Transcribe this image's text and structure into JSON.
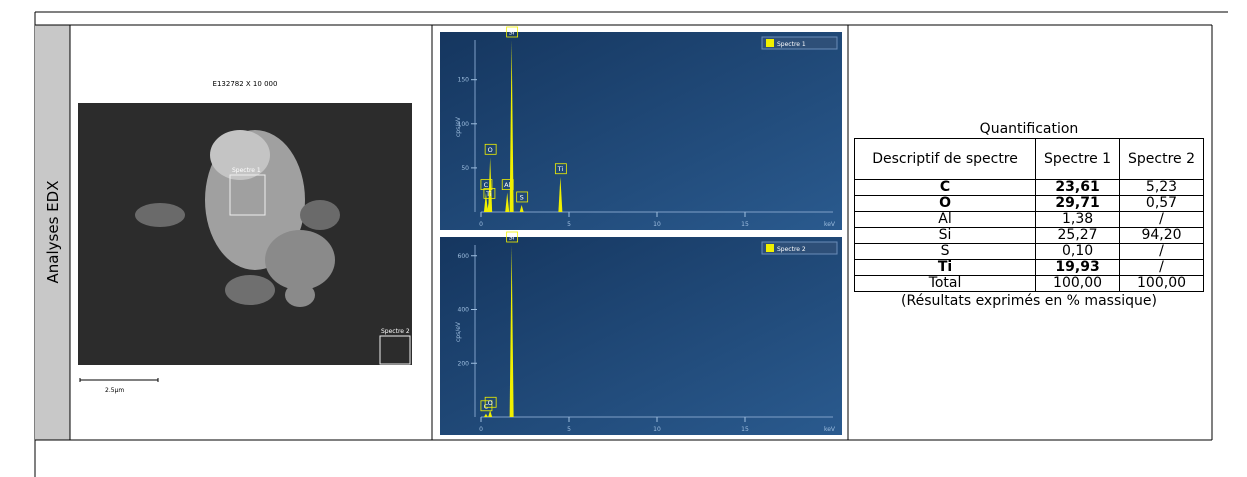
{
  "section_label": "Analyses EDX",
  "sem_image": {
    "caption": "E132782 X 10 000",
    "scale_bar": "2.5µm",
    "regions": [
      "Spectre 1",
      "Spectre 2"
    ]
  },
  "spectra": [
    {
      "legend": "Spectre 1",
      "y_label": "cps/eV",
      "x_unit": "keV",
      "xlim": [
        0,
        20
      ],
      "ylim": [
        0,
        195
      ],
      "xticks": [
        0,
        5,
        10,
        15
      ],
      "yticks": [
        50,
        100,
        150
      ],
      "peaks": [
        {
          "label": "C",
          "x": 0.28,
          "y": 22
        },
        {
          "label": "O",
          "x": 0.52,
          "y": 62
        },
        {
          "label": "Ti",
          "x": 0.45,
          "y": 12
        },
        {
          "label": "Al",
          "x": 1.49,
          "y": 22
        },
        {
          "label": "Si",
          "x": 1.74,
          "y": 195
        },
        {
          "label": "S",
          "x": 2.31,
          "y": 8
        },
        {
          "label": "Ti",
          "x": 4.51,
          "y": 40
        }
      ]
    },
    {
      "legend": "Spectre 2",
      "y_label": "cps/eV",
      "x_unit": "keV",
      "xlim": [
        0,
        20
      ],
      "ylim": [
        0,
        640
      ],
      "xticks": [
        0,
        5,
        10,
        15
      ],
      "yticks": [
        200,
        400,
        600
      ],
      "peaks": [
        {
          "label": "C",
          "x": 0.28,
          "y": 12
        },
        {
          "label": "O",
          "x": 0.52,
          "y": 25
        },
        {
          "label": "Si",
          "x": 1.74,
          "y": 640
        }
      ]
    }
  ],
  "quantification": {
    "title": "Quantification",
    "header": [
      "Descriptif de spectre",
      "Spectre 1",
      "Spectre 2"
    ],
    "rows": [
      {
        "cells": [
          "C",
          "23,61",
          "5,23"
        ],
        "bold": true
      },
      {
        "cells": [
          "O",
          "29,71",
          "0,57"
        ],
        "bold": true
      },
      {
        "cells": [
          "Al",
          "1,38",
          "/"
        ],
        "bold": false
      },
      {
        "cells": [
          "Si",
          "25,27",
          "94,20"
        ],
        "bold": false
      },
      {
        "cells": [
          "S",
          "0,10",
          "/"
        ],
        "bold": false
      },
      {
        "cells": [
          "Ti",
          "19,93",
          "/"
        ],
        "bold": true
      },
      {
        "cells": [
          "Total",
          "100,00",
          "100,00"
        ],
        "bold": false
      }
    ],
    "note": "(Résultats exprimés en % massique)"
  }
}
